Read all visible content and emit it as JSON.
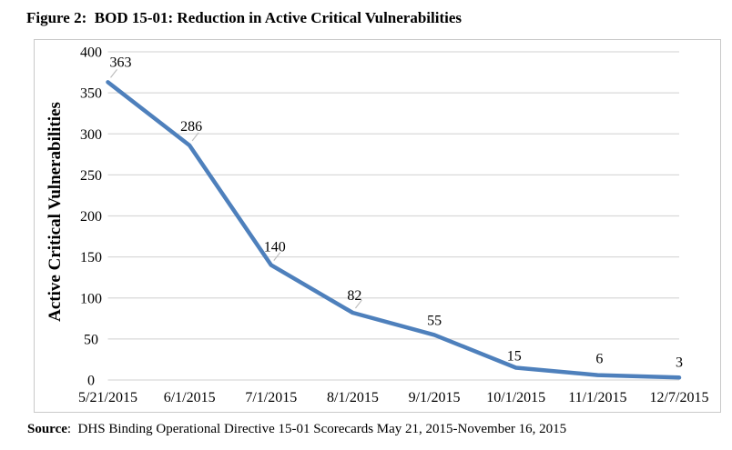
{
  "figure": {
    "title": "Figure 2:  BOD 15-01: Reduction in Active Critical Vulnerabilities",
    "source_label": "Source",
    "source_text": ":  DHS Binding Operational Directive 15-01 Scorecards May 21, 2015-November 16, 2015"
  },
  "chart_data": {
    "type": "line",
    "title": "Figure 2:  BOD 15-01: Reduction in Active Critical Vulnerabilities",
    "categories": [
      "5/21/2015",
      "6/1/2015",
      "7/1/2015",
      "8/1/2015",
      "9/1/2015",
      "10/1/2015",
      "11/1/2015",
      "12/7/2015"
    ],
    "values": [
      363,
      286,
      140,
      82,
      55,
      15,
      6,
      3
    ],
    "data_labels": true,
    "xlabel": "",
    "ylabel": "Active Critical Vulnerabilities",
    "ylim": [
      0,
      400
    ],
    "ytick_step": 50,
    "grid": true,
    "legend_position": "none",
    "line_color": "#4E80BC",
    "gridline_color": "#D9D9D9",
    "frame_color": "#C9C9C9",
    "leader_line_color": "#BFBFBF",
    "text_color": "#000000"
  }
}
